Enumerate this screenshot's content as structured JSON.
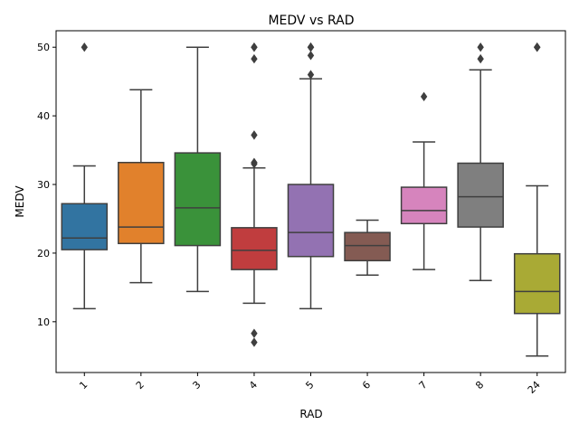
{
  "chart_data": {
    "type": "box",
    "title": "MEDV vs RAD",
    "xlabel": "RAD",
    "ylabel": "MEDV",
    "ylim": [
      2.6,
      52.4
    ],
    "yticks": [
      10,
      20,
      30,
      40,
      50
    ],
    "grid": false,
    "categories": [
      "1",
      "2",
      "3",
      "4",
      "5",
      "6",
      "7",
      "8",
      "24"
    ],
    "boxes": [
      {
        "category": "1",
        "color": "#3274a1",
        "whisker_low": 11.9,
        "q1": 20.5,
        "median": 22.2,
        "q3": 27.2,
        "whisker_high": 32.7,
        "outliers": [
          50.0
        ]
      },
      {
        "category": "2",
        "color": "#e1812c",
        "whisker_low": 15.7,
        "q1": 21.4,
        "median": 23.8,
        "q3": 33.2,
        "whisker_high": 43.8,
        "outliers": []
      },
      {
        "category": "3",
        "color": "#3a923a",
        "whisker_low": 14.4,
        "q1": 21.1,
        "median": 26.6,
        "q3": 34.6,
        "whisker_high": 50.0,
        "outliers": []
      },
      {
        "category": "4",
        "color": "#c03d3e",
        "whisker_low": 12.7,
        "q1": 17.6,
        "median": 20.4,
        "q3": 23.7,
        "whisker_high": 32.4,
        "outliers": [
          50.0,
          50.0,
          48.3,
          37.2,
          33.2,
          33.0,
          8.3,
          7.0
        ]
      },
      {
        "category": "5",
        "color": "#9372b2",
        "whisker_low": 11.9,
        "q1": 19.5,
        "median": 23.0,
        "q3": 30.0,
        "whisker_high": 45.4,
        "outliers": [
          50.0,
          50.0,
          50.0,
          48.8,
          46.0
        ]
      },
      {
        "category": "6",
        "color": "#845b53",
        "whisker_low": 16.8,
        "q1": 18.9,
        "median": 21.1,
        "q3": 23.0,
        "whisker_high": 24.8,
        "outliers": []
      },
      {
        "category": "7",
        "color": "#d684bd",
        "whisker_low": 17.6,
        "q1": 24.3,
        "median": 26.2,
        "q3": 29.6,
        "whisker_high": 36.2,
        "outliers": [
          42.8
        ]
      },
      {
        "category": "8",
        "color": "#7f7f7f",
        "whisker_low": 16.0,
        "q1": 23.8,
        "median": 28.2,
        "q3": 33.1,
        "whisker_high": 46.7,
        "outliers": [
          50.0,
          48.3
        ]
      },
      {
        "category": "24",
        "color": "#a9aa35",
        "whisker_low": 5.0,
        "q1": 11.2,
        "median": 14.4,
        "q3": 19.9,
        "whisker_high": 29.8,
        "outliers": [
          50.0,
          50.0,
          50.0
        ]
      }
    ]
  }
}
